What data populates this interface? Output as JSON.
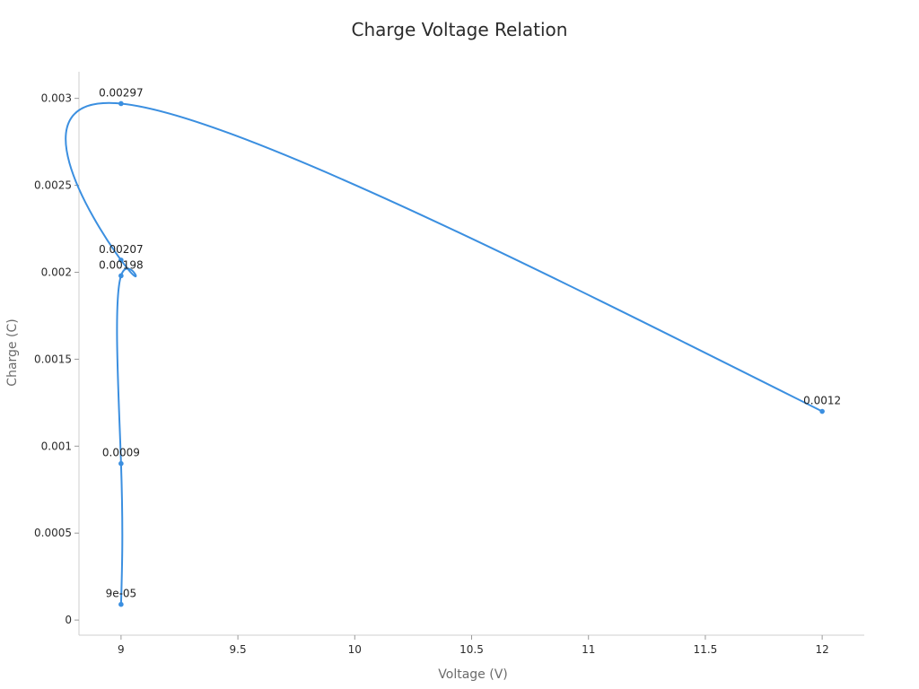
{
  "chart_data": {
    "type": "line",
    "title": "Charge Voltage Relation",
    "xlabel": "Voltage (V)",
    "ylabel": "Charge (C)",
    "xlim": [
      8.82,
      12.18
    ],
    "ylim": [
      -8.7e-05,
      0.003153
    ],
    "xticks": [
      9,
      9.5,
      10,
      10.5,
      11,
      11.5,
      12
    ],
    "xtick_labels": [
      "9",
      "9.5",
      "10",
      "10.5",
      "11",
      "11.5",
      "12"
    ],
    "yticks": [
      0,
      0.0005,
      0.001,
      0.0015,
      0.002,
      0.0025,
      0.003
    ],
    "ytick_labels": [
      "0",
      "0.0005",
      "0.001",
      "0.0015",
      "0.002",
      "0.0025",
      "0.003"
    ],
    "grid": false,
    "series": [
      {
        "color": "#3b8fe0",
        "points": [
          {
            "x": 9,
            "y": 9e-05,
            "label": "9e-05"
          },
          {
            "x": 9,
            "y": 0.0009,
            "label": "0.0009"
          },
          {
            "x": 9,
            "y": 0.00198,
            "label": "0.00198"
          },
          {
            "x": 9,
            "y": 0.00207,
            "label": "0.00207"
          },
          {
            "x": 9,
            "y": 0.00297,
            "label": "0.00297"
          },
          {
            "x": 12,
            "y": 0.0012,
            "label": "0.0012"
          }
        ]
      }
    ]
  }
}
